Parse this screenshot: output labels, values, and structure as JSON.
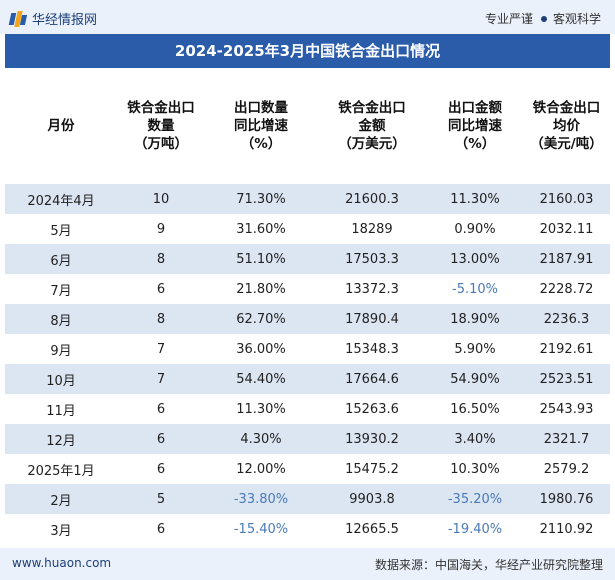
{
  "header": {
    "site_name": "华经情报网",
    "tagline_left": "专业严谨",
    "tagline_right": "客观科学"
  },
  "title": "2024-2025年3月中国铁合金出口情况",
  "table": {
    "columns": [
      "月份",
      "铁合金出口\n数量\n（万吨）",
      "出口数量\n同比增速\n（%）",
      "铁合金出口\n金额\n（万美元）",
      "出口金额\n同比增速\n（%）",
      "铁合金出口\n均价\n（美元/吨）"
    ],
    "rows": [
      [
        "2024年4月",
        "10",
        "71.30%",
        "21600.3",
        "11.30%",
        "2160.03"
      ],
      [
        "5月",
        "9",
        "31.60%",
        "18289",
        "0.90%",
        "2032.11"
      ],
      [
        "6月",
        "8",
        "51.10%",
        "17503.3",
        "13.00%",
        "2187.91"
      ],
      [
        "7月",
        "6",
        "21.80%",
        "13372.3",
        "-5.10%",
        "2228.72"
      ],
      [
        "8月",
        "8",
        "62.70%",
        "17890.4",
        "18.90%",
        "2236.3"
      ],
      [
        "9月",
        "7",
        "36.00%",
        "15348.3",
        "5.90%",
        "2192.61"
      ],
      [
        "10月",
        "7",
        "54.40%",
        "17664.6",
        "54.90%",
        "2523.51"
      ],
      [
        "11月",
        "6",
        "11.30%",
        "15263.6",
        "16.50%",
        "2543.93"
      ],
      [
        "12月",
        "6",
        "4.30%",
        "13930.2",
        "3.40%",
        "2321.7"
      ],
      [
        "2025年1月",
        "6",
        "12.00%",
        "15475.2",
        "10.30%",
        "2579.2"
      ],
      [
        "2月",
        "5",
        "-33.80%",
        "9903.8",
        "-35.20%",
        "1980.76"
      ],
      [
        "3月",
        "6",
        "-15.40%",
        "12665.5",
        "-19.40%",
        "2110.92"
      ]
    ]
  },
  "watermark": "华经产业研究院",
  "footer": {
    "url": "www.huaon.com",
    "source": "数据来源：中国海关，华经产业研究院整理"
  },
  "colors": {
    "title_bg": "#2a5caa",
    "stripe": "#dce6f3",
    "negative_text": "#4a7ab8"
  }
}
